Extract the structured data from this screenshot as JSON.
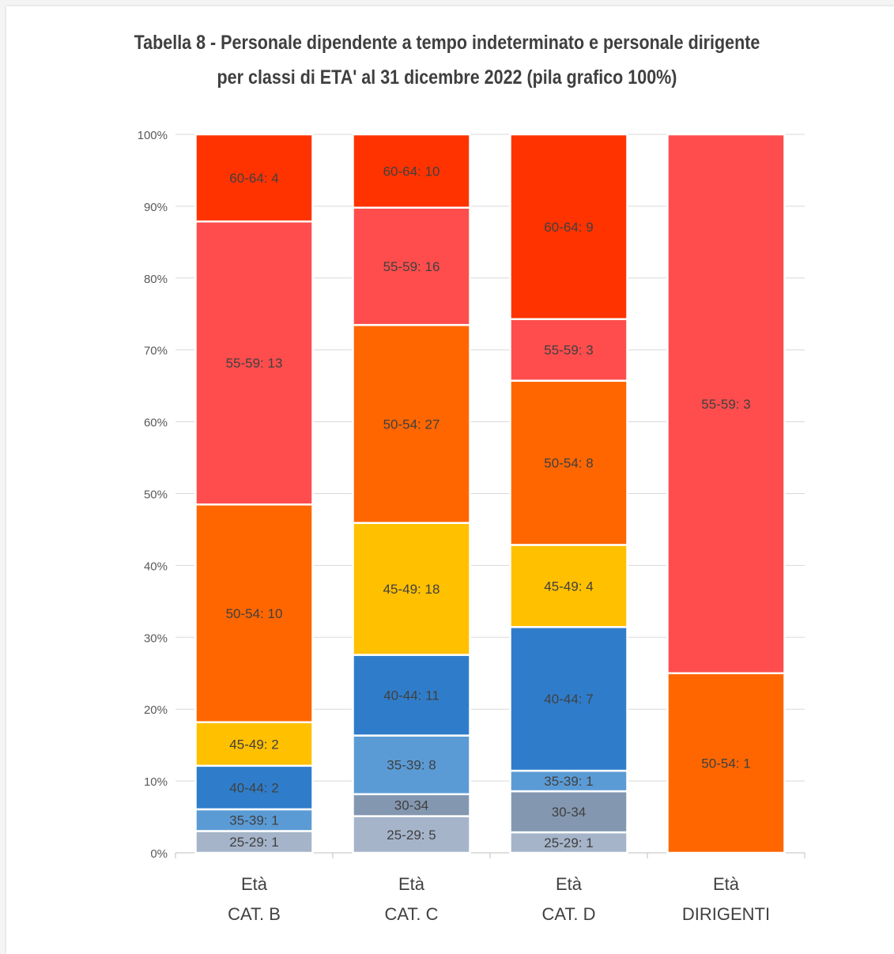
{
  "chart_data": {
    "type": "bar",
    "stacked": true,
    "normalized": "100%",
    "title": [
      "Tabella 8 - Personale dipendente a tempo indeterminato e personale dirigente",
      "per classi di ETA' al 31 dicembre 2022 (pila grafico 100%)"
    ],
    "categories": [
      [
        "Età",
        "CAT. B"
      ],
      [
        "Età",
        "CAT. C"
      ],
      [
        "Età",
        "CAT. D"
      ],
      [
        "Età",
        "DIRIGENTI"
      ]
    ],
    "ylim": [
      0,
      100
    ],
    "y_ticks": [
      "0%",
      "10%",
      "20%",
      "30%",
      "40%",
      "50%",
      "60%",
      "70%",
      "80%",
      "90%",
      "100%"
    ],
    "grid": true,
    "legend": "none",
    "series": [
      {
        "values": [
          1,
          5,
          1,
          0
        ],
        "labels": [
          "25-29: 1",
          "25-29: 5",
          "25-29: 1",
          ""
        ],
        "color": "#a5b4c9"
      },
      {
        "values": [
          0,
          3,
          2,
          0
        ],
        "labels": [
          "",
          "30-34",
          "30-34",
          ""
        ],
        "color": "#8497b0"
      },
      {
        "values": [
          1,
          8,
          1,
          0
        ],
        "labels": [
          "35-39: 1",
          "35-39: 8",
          "35-39: 1",
          ""
        ],
        "color": "#5b9bd5"
      },
      {
        "values": [
          2,
          11,
          7,
          0
        ],
        "labels": [
          "40-44:  2",
          "40-44:  11",
          "40-44:  7",
          ""
        ],
        "color": "#2f7dca"
      },
      {
        "values": [
          2,
          18,
          4,
          0
        ],
        "labels": [
          "45-49: 2",
          "45-49: 18",
          "45-49: 4",
          ""
        ],
        "color": "#ffc000"
      },
      {
        "values": [
          10,
          27,
          8,
          1
        ],
        "labels": [
          "50-54: 10",
          "50-54: 27",
          "50-54: 8",
          "50-54: 1"
        ],
        "color": "#ff6600"
      },
      {
        "values": [
          13,
          16,
          3,
          3
        ],
        "labels": [
          "55-59: 13",
          "55-59: 16",
          "55-59: 3",
          "55-59: 3"
        ],
        "color": "#ff4d4d"
      },
      {
        "values": [
          4,
          10,
          9,
          0
        ],
        "labels": [
          "60-64: 4",
          "60-64: 10",
          "60-64: 9",
          ""
        ],
        "color": "#ff3300"
      }
    ]
  }
}
